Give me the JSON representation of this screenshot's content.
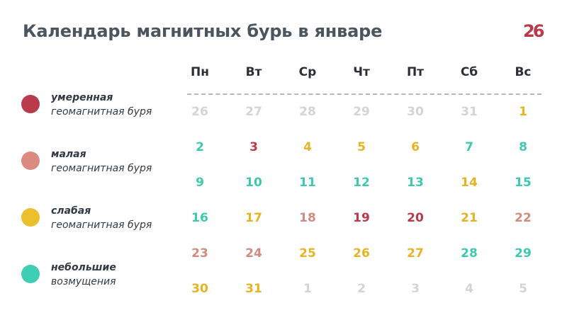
{
  "title": "Календарь магнитных бурь в январе",
  "logo": {
    "text": "26",
    "color": "#b83a4b"
  },
  "legend": [
    {
      "title": "умеренная",
      "subtitle": "геомагнитная буря",
      "color": "#b83a4b"
    },
    {
      "title": "малая",
      "subtitle": "геомагнитная буря",
      "color": "#db8a80"
    },
    {
      "title": "слабая",
      "subtitle": "геомагнитная буря",
      "color": "#ecbf2c"
    },
    {
      "title": "небольшие",
      "subtitle": "возмущения",
      "color": "#3fcdb4"
    }
  ],
  "colors": {
    "moderate": "#b83a4b",
    "minor": "#d08b80",
    "weak": "#e5b424",
    "small": "#3fc8b0",
    "none": "#1f2328",
    "other_month": "#d2d4d7"
  },
  "weekdays": [
    "Пн",
    "Вт",
    "Ср",
    "Чт",
    "Пт",
    "Сб",
    "Вс"
  ],
  "weeks": [
    [
      {
        "day": "26",
        "level": "other_month"
      },
      {
        "day": "27",
        "level": "other_month"
      },
      {
        "day": "28",
        "level": "other_month"
      },
      {
        "day": "29",
        "level": "other_month"
      },
      {
        "day": "30",
        "level": "other_month"
      },
      {
        "day": "31",
        "level": "other_month"
      },
      {
        "day": "1",
        "level": "weak"
      }
    ],
    [
      {
        "day": "2",
        "level": "small"
      },
      {
        "day": "3",
        "level": "moderate"
      },
      {
        "day": "4",
        "level": "weak"
      },
      {
        "day": "5",
        "level": "weak"
      },
      {
        "day": "6",
        "level": "weak"
      },
      {
        "day": "7",
        "level": "small"
      },
      {
        "day": "8",
        "level": "small"
      }
    ],
    [
      {
        "day": "9",
        "level": "small"
      },
      {
        "day": "10",
        "level": "small"
      },
      {
        "day": "11",
        "level": "small"
      },
      {
        "day": "12",
        "level": "small"
      },
      {
        "day": "13",
        "level": "small"
      },
      {
        "day": "14",
        "level": "weak"
      },
      {
        "day": "15",
        "level": "small"
      }
    ],
    [
      {
        "day": "16",
        "level": "small"
      },
      {
        "day": "17",
        "level": "weak"
      },
      {
        "day": "18",
        "level": "minor"
      },
      {
        "day": "19",
        "level": "moderate"
      },
      {
        "day": "20",
        "level": "moderate"
      },
      {
        "day": "21",
        "level": "weak"
      },
      {
        "day": "22",
        "level": "minor"
      }
    ],
    [
      {
        "day": "23",
        "level": "minor"
      },
      {
        "day": "24",
        "level": "minor"
      },
      {
        "day": "25",
        "level": "weak"
      },
      {
        "day": "26",
        "level": "weak"
      },
      {
        "day": "27",
        "level": "weak"
      },
      {
        "day": "28",
        "level": "small"
      },
      {
        "day": "29",
        "level": "small"
      }
    ],
    [
      {
        "day": "30",
        "level": "weak"
      },
      {
        "day": "31",
        "level": "weak"
      },
      {
        "day": "1",
        "level": "other_month"
      },
      {
        "day": "2",
        "level": "other_month"
      },
      {
        "day": "3",
        "level": "other_month"
      },
      {
        "day": "4",
        "level": "other_month"
      },
      {
        "day": "5",
        "level": "other_month"
      }
    ]
  ]
}
